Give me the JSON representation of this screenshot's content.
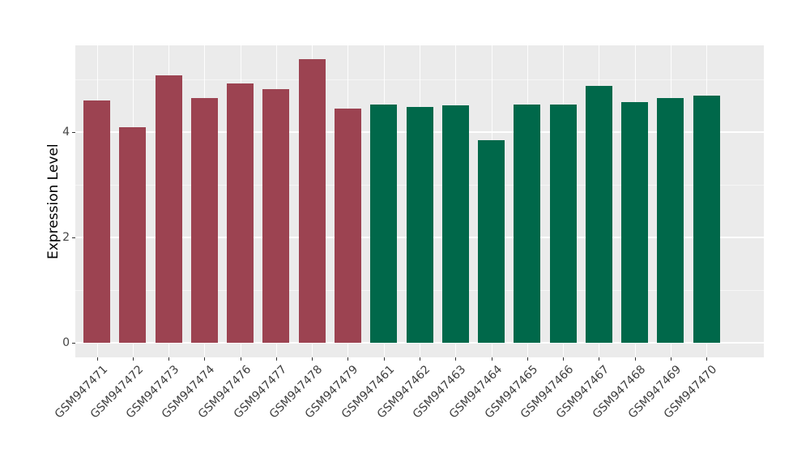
{
  "figure": {
    "background_color": "#FFFFFF",
    "panel_background_color": "#EBEBEB",
    "gridline_color": "#FFFFFF",
    "tick_mark_color": "#333333",
    "axis_text_color": "#3F3F3F"
  },
  "chart_data": {
    "type": "bar",
    "title": "",
    "xlabel": "",
    "ylabel": "Expression Level",
    "legend_position": "none",
    "grid": true,
    "categories": [
      "GSM947471",
      "GSM947472",
      "GSM947473",
      "GSM947474",
      "GSM947476",
      "GSM947477",
      "GSM947478",
      "GSM947479",
      "GSM947461",
      "GSM947462",
      "GSM947463",
      "GSM947464",
      "GSM947465",
      "GSM947466",
      "GSM947467",
      "GSM947468",
      "GSM947469",
      "GSM947470"
    ],
    "values": [
      4.6,
      4.1,
      5.07,
      4.64,
      4.92,
      4.82,
      5.38,
      4.45,
      4.53,
      4.48,
      4.51,
      3.84,
      4.52,
      4.53,
      4.87,
      4.57,
      4.64,
      4.69
    ],
    "groups": [
      "A",
      "A",
      "A",
      "A",
      "A",
      "A",
      "A",
      "A",
      "B",
      "B",
      "B",
      "B",
      "B",
      "B",
      "B",
      "B",
      "B",
      "B"
    ],
    "group_colors": {
      "A": "#9C4351",
      "B": "#00684A"
    },
    "yticks": [
      0,
      2,
      4
    ],
    "yticks_minor": [
      1,
      3,
      5
    ],
    "ylim": [
      -0.28,
      5.65
    ]
  }
}
